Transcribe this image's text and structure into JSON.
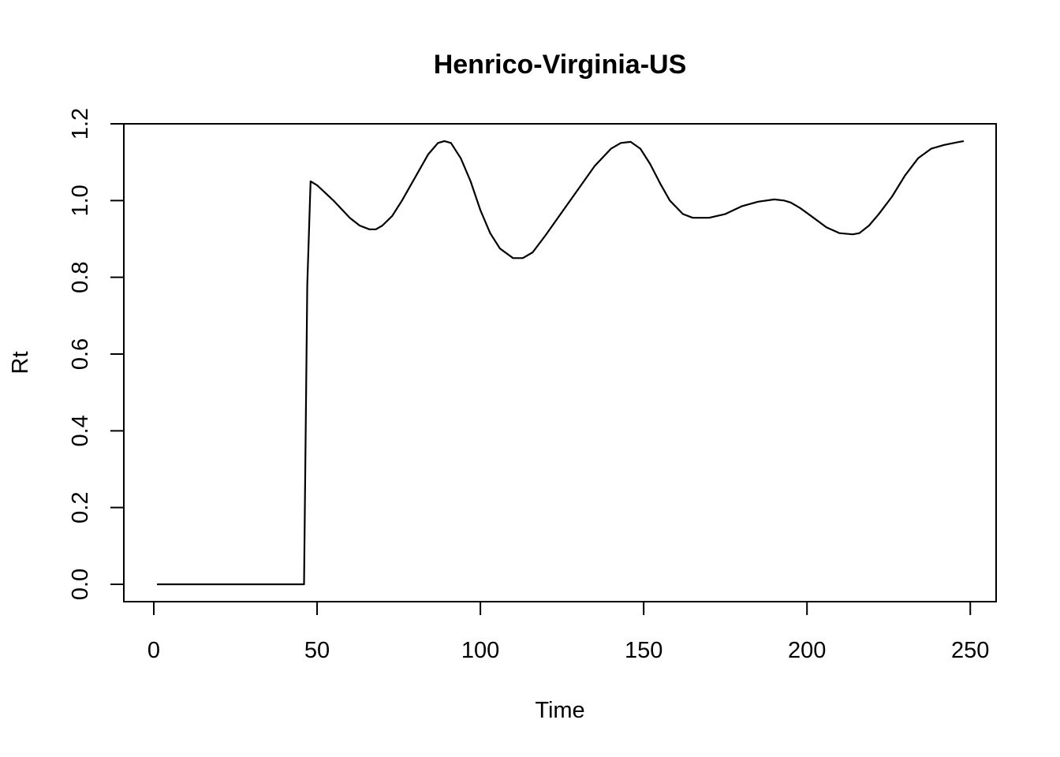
{
  "chart_data": {
    "type": "line",
    "title": "Henrico-Virginia-US",
    "xlabel": "Time",
    "ylabel": "Rt",
    "xlim": [
      1,
      248
    ],
    "ylim": [
      0,
      1.2
    ],
    "x_ticks": [
      0,
      50,
      100,
      150,
      200,
      250
    ],
    "y_ticks": [
      0.0,
      0.2,
      0.4,
      0.6,
      0.8,
      1.0,
      1.2
    ],
    "x_tick_labels": [
      "0",
      "50",
      "100",
      "150",
      "200",
      "250"
    ],
    "y_tick_labels": [
      "0.0",
      "0.2",
      "0.4",
      "0.6",
      "0.8",
      "1.0",
      "1.2"
    ],
    "grid": false,
    "legend": "none",
    "line_color": "#000000",
    "series": [
      {
        "x": [
          1,
          10,
          20,
          30,
          40,
          46,
          47,
          48,
          50,
          55,
          60,
          63,
          66,
          68,
          70,
          73,
          76,
          80,
          84,
          87,
          89,
          91,
          94,
          97,
          100,
          103,
          106,
          110,
          113,
          116,
          120,
          125,
          130,
          135,
          140,
          143,
          146,
          149,
          152,
          155,
          158,
          162,
          165,
          170,
          175,
          180,
          185,
          190,
          193,
          195,
          198,
          202,
          206,
          210,
          214,
          216,
          219,
          222,
          226,
          230,
          234,
          238,
          242,
          246,
          248
        ],
        "y": [
          0,
          0,
          0,
          0,
          0,
          0,
          0.78,
          1.05,
          1.04,
          1.0,
          0.955,
          0.935,
          0.925,
          0.925,
          0.935,
          0.96,
          1.0,
          1.06,
          1.12,
          1.15,
          1.155,
          1.15,
          1.11,
          1.05,
          0.975,
          0.915,
          0.875,
          0.85,
          0.85,
          0.865,
          0.91,
          0.97,
          1.03,
          1.09,
          1.135,
          1.15,
          1.153,
          1.135,
          1.095,
          1.045,
          1.0,
          0.965,
          0.955,
          0.955,
          0.965,
          0.985,
          0.997,
          1.003,
          1.0,
          0.995,
          0.98,
          0.955,
          0.93,
          0.915,
          0.912,
          0.915,
          0.935,
          0.965,
          1.01,
          1.065,
          1.11,
          1.135,
          1.145,
          1.152,
          1.155
        ]
      }
    ]
  }
}
